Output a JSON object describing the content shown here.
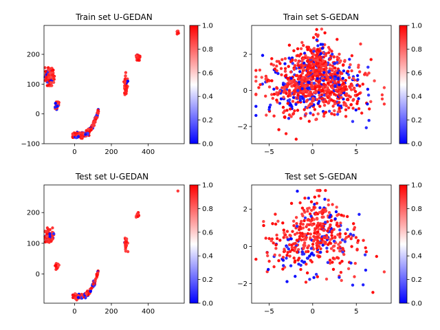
{
  "figure": {
    "colormap": {
      "name": "bwr",
      "low": "#0000ff",
      "mid": "#ffffff",
      "high": "#ff0000",
      "range": [
        0,
        1
      ]
    }
  },
  "chart_data": [
    {
      "type": "scatter",
      "title": "Train set U-GEDAN",
      "xlabel": "",
      "ylabel": "",
      "xlim": [
        -166,
        596
      ],
      "ylim": [
        -100,
        297
      ],
      "xticks": [
        0,
        200,
        400
      ],
      "yticks": [
        -100,
        0,
        100,
        200
      ],
      "colorbar": {
        "ticks": [
          0.0,
          0.2,
          0.4,
          0.6,
          0.8,
          1.0
        ]
      },
      "clusters": [
        {
          "label": "upper-left cluster",
          "x": [
            -160,
            -110
          ],
          "y": [
            95,
            155
          ],
          "approx_points": 140,
          "mean_value": 0.85
        },
        {
          "label": "mid-left cluster",
          "x": [
            -105,
            -85
          ],
          "y": [
            15,
            40
          ],
          "approx_points": 50,
          "mean_value": 0.9
        },
        {
          "label": "bottom arc",
          "x": [
            -10,
            130
          ],
          "y": [
            -80,
            10
          ],
          "approx_points": 260,
          "mean_value": 0.75
        },
        {
          "label": "cluster near x=280",
          "x": [
            268,
            290
          ],
          "y": [
            55,
            145
          ],
          "approx_points": 45,
          "mean_value": 0.95
        },
        {
          "label": "cluster near x=345",
          "x": [
            335,
            355
          ],
          "y": [
            180,
            200
          ],
          "approx_points": 30,
          "mean_value": 0.98
        },
        {
          "label": "outlier cluster near x=560",
          "x": [
            555,
            565
          ],
          "y": [
            265,
            280
          ],
          "approx_points": 10,
          "mean_value": 1.0
        }
      ]
    },
    {
      "type": "scatter",
      "title": "Train set S-GEDAN",
      "xlabel": "",
      "ylabel": "",
      "xlim": [
        -7,
        9
      ],
      "ylim": [
        -2.95,
        3.6
      ],
      "xticks": [
        -5,
        0,
        5
      ],
      "yticks": [
        -2,
        0,
        2
      ],
      "colorbar": {
        "ticks": [
          0.0,
          0.2,
          0.4,
          0.6,
          0.8,
          1.0
        ]
      },
      "clusters": [
        {
          "label": "main cloud",
          "x": [
            -6.5,
            8.2
          ],
          "y": [
            -2.7,
            3.4
          ],
          "approx_points": 1000,
          "mean_value": 0.8
        }
      ]
    },
    {
      "type": "scatter",
      "title": "Test set U-GEDAN",
      "xlabel": "",
      "ylabel": "",
      "xlim": [
        -166,
        596
      ],
      "ylim": [
        -95,
        290
      ],
      "xticks": [
        0,
        200,
        400
      ],
      "yticks": [
        0,
        100,
        200
      ],
      "colorbar": {
        "ticks": [
          0.0,
          0.2,
          0.4,
          0.6,
          0.8,
          1.0
        ]
      },
      "clusters": [
        {
          "label": "upper-left cluster",
          "x": [
            -160,
            -110
          ],
          "y": [
            100,
            150
          ],
          "approx_points": 70,
          "mean_value": 0.85
        },
        {
          "label": "mid-left cluster",
          "x": [
            -105,
            -85
          ],
          "y": [
            15,
            40
          ],
          "approx_points": 25,
          "mean_value": 0.9
        },
        {
          "label": "bottom arc",
          "x": [
            -10,
            130
          ],
          "y": [
            -80,
            10
          ],
          "approx_points": 130,
          "mean_value": 0.75
        },
        {
          "label": "cluster near x=280",
          "x": [
            268,
            290
          ],
          "y": [
            55,
            140
          ],
          "approx_points": 22,
          "mean_value": 0.95
        },
        {
          "label": "cluster near x=345",
          "x": [
            335,
            355
          ],
          "y": [
            185,
            200
          ],
          "approx_points": 12,
          "mean_value": 0.98
        },
        {
          "label": "outlier near x=560",
          "x": [
            560,
            562
          ],
          "y": [
            270,
            272
          ],
          "approx_points": 1,
          "mean_value": 1.0
        }
      ]
    },
    {
      "type": "scatter",
      "title": "Test set S-GEDAN",
      "xlabel": "",
      "ylabel": "",
      "xlim": [
        -7,
        9
      ],
      "ylim": [
        -3.05,
        3.3
      ],
      "xticks": [
        -5,
        0,
        5
      ],
      "yticks": [
        -2,
        0,
        2
      ],
      "colorbar": {
        "ticks": [
          0.0,
          0.2,
          0.4,
          0.6,
          0.8,
          1.0
        ]
      },
      "clusters": [
        {
          "label": "main cloud",
          "x": [
            -6.5,
            8.2
          ],
          "y": [
            -2.7,
            3.0
          ],
          "approx_points": 450,
          "mean_value": 0.8
        }
      ]
    }
  ]
}
